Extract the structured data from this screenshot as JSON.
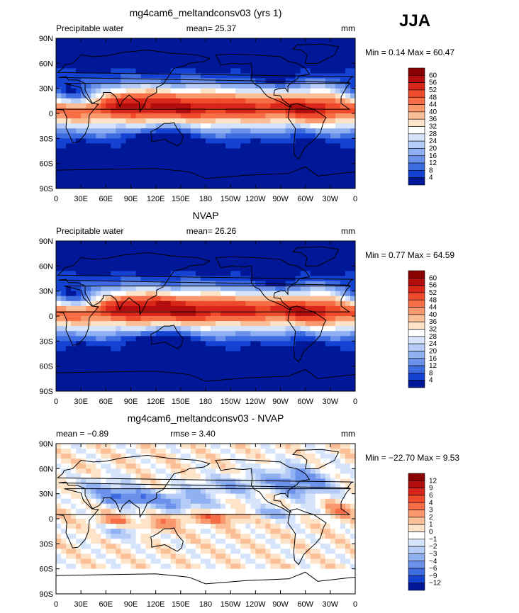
{
  "season": "JJA",
  "chart_data": [
    {
      "type": "heatmap",
      "title": "mg4cam6_meltandconsv03 (yrs 1)",
      "left_label": "Precipitable water",
      "center_label": "mean=  25.37",
      "units": "mm",
      "stats": "Min =   0.14 Max =  60.47",
      "x_ticks": [
        "0",
        "30E",
        "60E",
        "90E",
        "120E",
        "150E",
        "180",
        "150W",
        "120W",
        "90W",
        "60W",
        "30W",
        "0"
      ],
      "y_ticks": [
        "90N",
        "60N",
        "30N",
        "0",
        "30S",
        "60S",
        "90S"
      ],
      "xlim": [
        0,
        360
      ],
      "ylim": [
        -90,
        90
      ],
      "colorbar_levels": [
        "60",
        "56",
        "52",
        "48",
        "44",
        "40",
        "36",
        "32",
        "28",
        "24",
        "20",
        "16",
        "12",
        "8",
        "4"
      ],
      "colorbar_colors": [
        "#8b0000",
        "#b30d0d",
        "#d9261a",
        "#ee4a2b",
        "#f66d46",
        "#f9976d",
        "#fbbf98",
        "#fde3c8",
        "#ffffff",
        "#d5e4fb",
        "#b4ccf7",
        "#8fb0f1",
        "#6b91ea",
        "#3d6be0",
        "#1443d3",
        "#001898"
      ]
    },
    {
      "type": "heatmap",
      "title": "NVAP",
      "left_label": "Precipitable water",
      "center_label": "mean=  26.26",
      "units": "mm",
      "stats": "Min =   0.77 Max =  64.59",
      "x_ticks": [
        "0",
        "30E",
        "60E",
        "90E",
        "120E",
        "150E",
        "180",
        "150W",
        "120W",
        "90W",
        "60W",
        "30W",
        "0"
      ],
      "y_ticks": [
        "90N",
        "60N",
        "30N",
        "0",
        "30S",
        "60S",
        "90S"
      ],
      "xlim": [
        0,
        360
      ],
      "ylim": [
        -90,
        90
      ],
      "colorbar_levels": [
        "60",
        "56",
        "52",
        "48",
        "44",
        "40",
        "36",
        "32",
        "28",
        "24",
        "20",
        "16",
        "12",
        "8",
        "4"
      ],
      "colorbar_colors": [
        "#8b0000",
        "#b30d0d",
        "#d9261a",
        "#ee4a2b",
        "#f66d46",
        "#f9976d",
        "#fbbf98",
        "#fde3c8",
        "#ffffff",
        "#d5e4fb",
        "#b4ccf7",
        "#8fb0f1",
        "#6b91ea",
        "#3d6be0",
        "#1443d3",
        "#001898"
      ]
    },
    {
      "type": "heatmap",
      "title": "mg4cam6_meltandconsv03 - NVAP",
      "left_label": "mean =   −0.89",
      "center_label": "rmse =    3.40",
      "units": "mm",
      "stats": "Min = −22.70 Max =   9.53",
      "x_ticks": [
        "0",
        "30E",
        "60E",
        "90E",
        "120E",
        "150E",
        "180",
        "150W",
        "120W",
        "90W",
        "60W",
        "30W",
        "0"
      ],
      "y_ticks": [
        "90N",
        "60N",
        "30N",
        "0",
        "30S",
        "60S",
        "90S"
      ],
      "xlim": [
        0,
        360
      ],
      "ylim": [
        -90,
        90
      ],
      "colorbar_levels": [
        "12",
        "9",
        "6",
        "4",
        "3",
        "2",
        "1",
        "0",
        "−1",
        "−2",
        "−3",
        "−4",
        "−6",
        "−9",
        "−12"
      ],
      "colorbar_colors": [
        "#8b0000",
        "#b30d0d",
        "#d9261a",
        "#ee4a2b",
        "#f66d46",
        "#f9976d",
        "#fbbf98",
        "#fde3c8",
        "#ffffff",
        "#d5e4fb",
        "#b4ccf7",
        "#8fb0f1",
        "#6b91ea",
        "#3d6be0",
        "#1443d3",
        "#001898"
      ]
    }
  ]
}
